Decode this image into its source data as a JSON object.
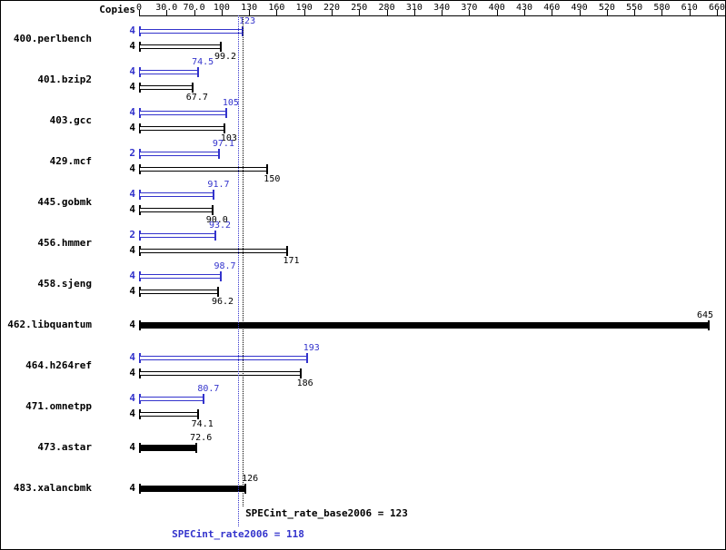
{
  "chart_data": {
    "type": "bar",
    "orientation": "horizontal",
    "copies_header": "Copies",
    "axis": {
      "tick_values": [
        0,
        30,
        70,
        100,
        130,
        160,
        190,
        220,
        250,
        280,
        310,
        340,
        370,
        400,
        430,
        460,
        490,
        520,
        550,
        580,
        610,
        660
      ],
      "tick_labels": [
        "0",
        "30.0",
        "70.0",
        "100",
        "130",
        "160",
        "190",
        "220",
        "250",
        "280",
        "310",
        "340",
        "370",
        "400",
        "430",
        "460",
        "490",
        "520",
        "550",
        "580",
        "610",
        "660"
      ],
      "xlim": [
        0,
        660
      ],
      "grid": false
    },
    "series_colors": {
      "peak": "#3333cc",
      "base": "#000000"
    },
    "benchmarks": [
      {
        "name": "400.perlbench",
        "bars": [
          {
            "series": "peak",
            "copies": "4",
            "value": 123,
            "label": "123"
          },
          {
            "series": "base",
            "copies": "4",
            "value": 99.2,
            "label": "99.2"
          }
        ]
      },
      {
        "name": "401.bzip2",
        "bars": [
          {
            "series": "peak",
            "copies": "4",
            "value": 74.5,
            "label": "74.5"
          },
          {
            "series": "base",
            "copies": "4",
            "value": 67.7,
            "label": "67.7"
          }
        ]
      },
      {
        "name": "403.gcc",
        "bars": [
          {
            "series": "peak",
            "copies": "4",
            "value": 105,
            "label": "105"
          },
          {
            "series": "base",
            "copies": "4",
            "value": 103,
            "label": "103"
          }
        ]
      },
      {
        "name": "429.mcf",
        "bars": [
          {
            "series": "peak",
            "copies": "2",
            "value": 97.1,
            "label": "97.1"
          },
          {
            "series": "base",
            "copies": "4",
            "value": 150,
            "label": "150"
          }
        ]
      },
      {
        "name": "445.gobmk",
        "bars": [
          {
            "series": "peak",
            "copies": "4",
            "value": 91.7,
            "label": "91.7"
          },
          {
            "series": "base",
            "copies": "4",
            "value": 90.0,
            "label": "90.0"
          }
        ]
      },
      {
        "name": "456.hmmer",
        "bars": [
          {
            "series": "peak",
            "copies": "2",
            "value": 93.2,
            "label": "93.2"
          },
          {
            "series": "base",
            "copies": "4",
            "value": 171,
            "label": "171"
          }
        ]
      },
      {
        "name": "458.sjeng",
        "bars": [
          {
            "series": "peak",
            "copies": "4",
            "value": 98.7,
            "label": "98.7"
          },
          {
            "series": "base",
            "copies": "4",
            "value": 96.2,
            "label": "96.2"
          }
        ]
      },
      {
        "name": "462.libquantum",
        "bars": [
          {
            "series": "both",
            "copies": "4",
            "value": 645,
            "label": "645"
          }
        ]
      },
      {
        "name": "464.h264ref",
        "bars": [
          {
            "series": "peak",
            "copies": "4",
            "value": 193,
            "label": "193"
          },
          {
            "series": "base",
            "copies": "4",
            "value": 186,
            "label": "186"
          }
        ]
      },
      {
        "name": "471.omnetpp",
        "bars": [
          {
            "series": "peak",
            "copies": "4",
            "value": 80.7,
            "label": "80.7"
          },
          {
            "series": "base",
            "copies": "4",
            "value": 74.1,
            "label": "74.1"
          }
        ]
      },
      {
        "name": "473.astar",
        "bars": [
          {
            "series": "both",
            "copies": "4",
            "value": 72.6,
            "label": "72.6"
          }
        ]
      },
      {
        "name": "483.xalancbmk",
        "bars": [
          {
            "series": "both",
            "copies": "4",
            "value": 126,
            "label": "126"
          }
        ]
      }
    ],
    "reference_lines": [
      {
        "series": "base",
        "value": 123,
        "label": "SPECint_rate_base2006 = 123"
      },
      {
        "series": "peak",
        "value": 118,
        "label": "SPECint_rate2006 = 118"
      }
    ]
  }
}
